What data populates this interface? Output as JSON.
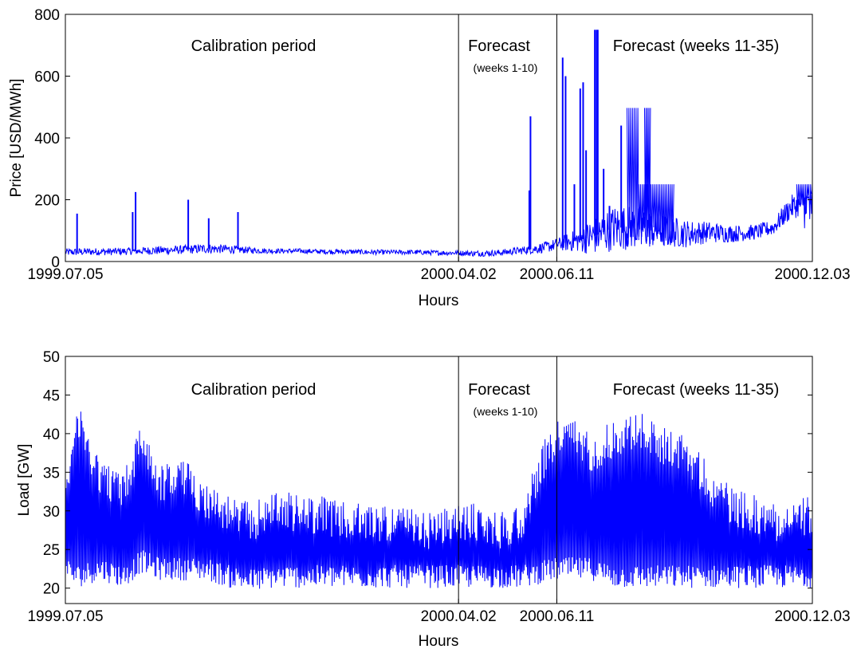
{
  "chart_data": [
    {
      "type": "line",
      "ylabel": "Price [USD/MWh]",
      "xlabel": "Hours",
      "ylim": [
        0,
        800
      ],
      "yticks": [
        0,
        200,
        400,
        600,
        800
      ],
      "xticks": [
        "1999.07.05",
        "2000.04.02",
        "2000.06.11",
        "2000.12.03"
      ],
      "x_range_hours": [
        0,
        12768
      ],
      "period_boundaries_hours": [
        6720,
        8400
      ],
      "annotations": {
        "calibration": "Calibration period",
        "forecast": "Forecast",
        "forecast_sub": "(weeks 1-10)",
        "forecast2": "Forecast (weeks 11-35)"
      },
      "grid": false,
      "line_color": "#0000ff",
      "profile": {
        "x": [
          0,
          400,
          800,
          1200,
          1600,
          2000,
          2400,
          2800,
          3200,
          3600,
          4000,
          4400,
          4800,
          5200,
          5600,
          6000,
          6400,
          6720,
          7000,
          7400,
          7700,
          8000,
          8200,
          8400,
          8800,
          9000,
          9400,
          9800,
          10200,
          10600,
          11000,
          11400,
          11800,
          12100,
          12400,
          12768
        ],
        "base": [
          30,
          32,
          32,
          34,
          36,
          38,
          42,
          40,
          36,
          34,
          34,
          32,
          32,
          30,
          30,
          30,
          28,
          28,
          26,
          28,
          34,
          40,
          46,
          55,
          70,
          80,
          110,
          110,
          100,
          90,
          95,
          90,
          95,
          110,
          175,
          200
        ],
        "amp": [
          12,
          12,
          12,
          12,
          14,
          14,
          16,
          14,
          10,
          8,
          8,
          8,
          8,
          8,
          8,
          8,
          8,
          8,
          10,
          10,
          12,
          15,
          18,
          20,
          40,
          60,
          75,
          70,
          55,
          45,
          35,
          28,
          25,
          25,
          40,
          40
        ]
      },
      "spikes": [
        {
          "x": 200,
          "y": 155
        },
        {
          "x": 1200,
          "y": 225
        },
        {
          "x": 1150,
          "y": 160
        },
        {
          "x": 2100,
          "y": 200
        },
        {
          "x": 2450,
          "y": 140
        },
        {
          "x": 2950,
          "y": 160
        },
        {
          "x": 7950,
          "y": 470
        },
        {
          "x": 7930,
          "y": 230
        },
        {
          "x": 8500,
          "y": 660
        },
        {
          "x": 8550,
          "y": 600
        },
        {
          "x": 8700,
          "y": 250
        },
        {
          "x": 8800,
          "y": 560
        },
        {
          "x": 8850,
          "y": 580
        },
        {
          "x": 8900,
          "y": 360
        },
        {
          "x": 9050,
          "y": 750
        },
        {
          "x": 9080,
          "y": 750
        },
        {
          "x": 9100,
          "y": 750
        },
        {
          "x": 9200,
          "y": 300
        },
        {
          "x": 9300,
          "y": 180
        },
        {
          "x": 9500,
          "y": 440
        }
      ],
      "caps": [
        {
          "x0": 9600,
          "x1": 9800,
          "y": 497
        },
        {
          "x0": 9900,
          "x1": 10000,
          "y": 497
        },
        {
          "x0": 9800,
          "x1": 10400,
          "y": 250
        },
        {
          "x0": 12500,
          "x1": 12768,
          "y": 250
        }
      ]
    },
    {
      "type": "line",
      "ylabel": "Load [GW]",
      "xlabel": "Hours",
      "ylim": [
        18,
        50
      ],
      "yticks": [
        20,
        25,
        30,
        35,
        40,
        45,
        50
      ],
      "xticks": [
        "1999.07.05",
        "2000.04.02",
        "2000.06.11",
        "2000.12.03"
      ],
      "x_range_hours": [
        0,
        12768
      ],
      "period_boundaries_hours": [
        6720,
        8400
      ],
      "annotations": {
        "calibration": "Calibration period",
        "forecast": "Forecast",
        "forecast_sub": "(weeks 1-10)",
        "forecast2": "Forecast (weeks 11-35)"
      },
      "grid": false,
      "line_color": "#0000ff",
      "profile": {
        "x": [
          0,
          200,
          600,
          1000,
          1300,
          1600,
          2000,
          2400,
          2800,
          3200,
          3600,
          4000,
          4400,
          4800,
          5200,
          5600,
          6000,
          6400,
          6720,
          7000,
          7400,
          7800,
          8100,
          8400,
          8700,
          9000,
          9400,
          9800,
          10200,
          10600,
          11000,
          11400,
          11800,
          12200,
          12768
        ],
        "lo": [
          21,
          20,
          21,
          20,
          22,
          21,
          21,
          21,
          20,
          19.5,
          20,
          20,
          20,
          20,
          20,
          20,
          20,
          20,
          20,
          20,
          20,
          20,
          20.5,
          21,
          21,
          21,
          20,
          20,
          20,
          20,
          20,
          20,
          20,
          20,
          20
        ],
        "hi": [
          36,
          44,
          37,
          35,
          42,
          36,
          37,
          34,
          32,
          31,
          33,
          32,
          32,
          31,
          31,
          31,
          30,
          30,
          31,
          31,
          30,
          31,
          38,
          42,
          42,
          40,
          42,
          43,
          41,
          40,
          36,
          33,
          32,
          31,
          32
        ]
      }
    }
  ]
}
